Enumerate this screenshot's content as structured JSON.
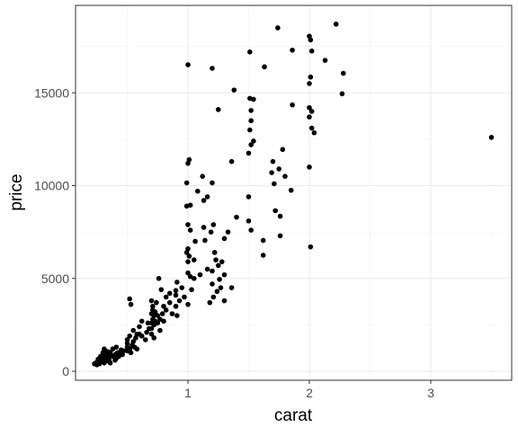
{
  "chart_data": {
    "type": "scatter",
    "x_label": "carat",
    "y_label": "price",
    "series": [
      {
        "color": "#000000",
        "x": [
          1.0,
          1.2,
          1.74,
          2.22,
          2.0,
          2.01,
          1.51,
          1.86,
          2.02,
          2.13,
          1.63,
          2.28,
          2.01,
          2.0,
          1.38,
          1.51,
          1.54,
          2.27,
          1.25,
          1.86,
          2.0,
          2.02,
          1.52,
          1.52,
          2.0,
          2.02,
          2.04,
          1.51,
          1.54,
          1.52,
          3.5,
          1.78,
          1.5,
          1.7,
          1.36,
          1.75,
          1.69,
          1.8,
          2.0,
          1.71,
          1.85,
          1.01,
          1.0,
          1.12,
          1.2,
          0.99,
          1.08,
          1.16,
          1.13,
          1.02,
          0.99,
          1.5,
          1.72,
          1.76,
          1.4,
          1.5,
          1.13,
          1.21,
          1.02,
          1.0,
          1.19,
          1.33,
          1.52,
          1.62,
          1.76,
          1.3,
          1.14,
          2.01,
          1.62,
          1.06,
          1.0,
          0.99,
          1.01,
          1.05,
          1.22,
          1.23,
          1.28,
          1.16,
          1.25,
          1.0,
          1.0,
          1.02,
          1.05,
          1.1,
          1.2,
          1.3,
          1.26,
          1.2,
          1.27,
          1.36,
          1.21,
          1.24,
          1.18,
          1.3,
          1.03,
          0.95,
          0.91,
          0.9,
          0.9,
          0.93,
          0.97,
          1.0,
          0.82,
          0.85,
          0.78,
          0.76,
          0.71,
          0.7,
          0.73,
          0.71,
          0.72,
          0.7,
          0.75,
          0.77,
          0.8,
          0.74,
          0.7,
          0.7,
          0.72,
          0.67,
          0.62,
          0.6,
          0.58,
          0.55,
          0.52,
          0.5,
          0.5,
          0.54,
          0.52,
          0.53,
          0.58,
          0.5,
          0.45,
          0.42,
          0.41,
          0.4,
          0.38,
          0.36,
          0.34,
          0.33,
          0.32,
          0.31,
          0.3,
          0.3,
          0.28,
          0.27,
          0.26,
          0.25,
          0.24,
          0.23,
          0.3,
          0.32,
          0.35,
          0.38,
          0.4,
          0.43,
          0.46,
          0.47,
          0.5,
          0.55,
          0.57,
          0.6,
          0.62,
          0.65,
          0.66,
          0.68,
          0.7,
          0.71,
          0.72,
          0.73,
          0.75,
          0.77,
          0.79,
          0.8,
          0.82,
          0.85,
          0.87,
          0.9,
          0.91,
          0.52,
          0.53,
          0.31,
          0.33,
          0.35,
          0.41,
          0.44,
          0.36,
          0.28,
          0.26,
          0.31,
          0.34,
          0.56
        ],
        "values": [
          16510,
          16320,
          18500,
          18700,
          18050,
          17850,
          17200,
          17300,
          17250,
          16750,
          16400,
          16050,
          15850,
          15500,
          15150,
          14700,
          14650,
          14950,
          14100,
          14350,
          14200,
          14000,
          14050,
          13500,
          13700,
          13100,
          12850,
          13000,
          12400,
          12200,
          12600,
          11950,
          11750,
          11300,
          11300,
          10900,
          10700,
          10500,
          11000,
          10100,
          9750,
          11400,
          11200,
          10500,
          10150,
          10150,
          9700,
          9400,
          9200,
          8950,
          8900,
          9400,
          8650,
          8350,
          8300,
          8100,
          7750,
          7900,
          7600,
          7900,
          7500,
          7500,
          7600,
          7050,
          7300,
          7150,
          7050,
          6700,
          6250,
          7000,
          6600,
          6400,
          6200,
          6000,
          6400,
          6000,
          5900,
          5500,
          5700,
          5900,
          5300,
          5100,
          5000,
          5200,
          5400,
          5200,
          4950,
          4700,
          4500,
          4500,
          4000,
          4300,
          3700,
          3800,
          4400,
          4500,
          4800,
          4100,
          4350,
          3800,
          4000,
          3600,
          4000,
          4200,
          4400,
          5000,
          3500,
          3800,
          3200,
          2800,
          2500,
          2300,
          3000,
          2200,
          3500,
          3700,
          3100,
          2000,
          1800,
          2600,
          2700,
          2400,
          2000,
          2200,
          1900,
          1700,
          1500,
          1400,
          3900,
          3600,
          1200,
          1300,
          1150,
          1000,
          1300,
          900,
          800,
          1000,
          700,
          900,
          600,
          700,
          500,
          800,
          600,
          400,
          500,
          350,
          450,
          400,
          1000,
          1100,
          600,
          1200,
          600,
          800,
          900,
          1100,
          1100,
          1600,
          1800,
          2000,
          1900,
          1700,
          2100,
          2300,
          2600,
          3300,
          3000,
          2700,
          2600,
          2800,
          3100,
          2700,
          3300,
          3700,
          3100,
          3500,
          3000,
          1200,
          1000,
          450,
          560,
          820,
          700,
          1000,
          450,
          800,
          650,
          1200,
          1050,
          1300
        ]
      }
    ],
    "xlim": [
      0.074,
      3.667
    ],
    "xticks": [
      1,
      2,
      3
    ],
    "x_minor_grid": [
      0.5,
      1.5,
      2.5,
      3.5
    ],
    "ylim": [
      -484,
      19710
    ],
    "yticks": [
      0,
      5000,
      10000,
      15000
    ],
    "y_minor_grid": [
      2500,
      7500,
      12500,
      17500
    ],
    "grid": true
  }
}
